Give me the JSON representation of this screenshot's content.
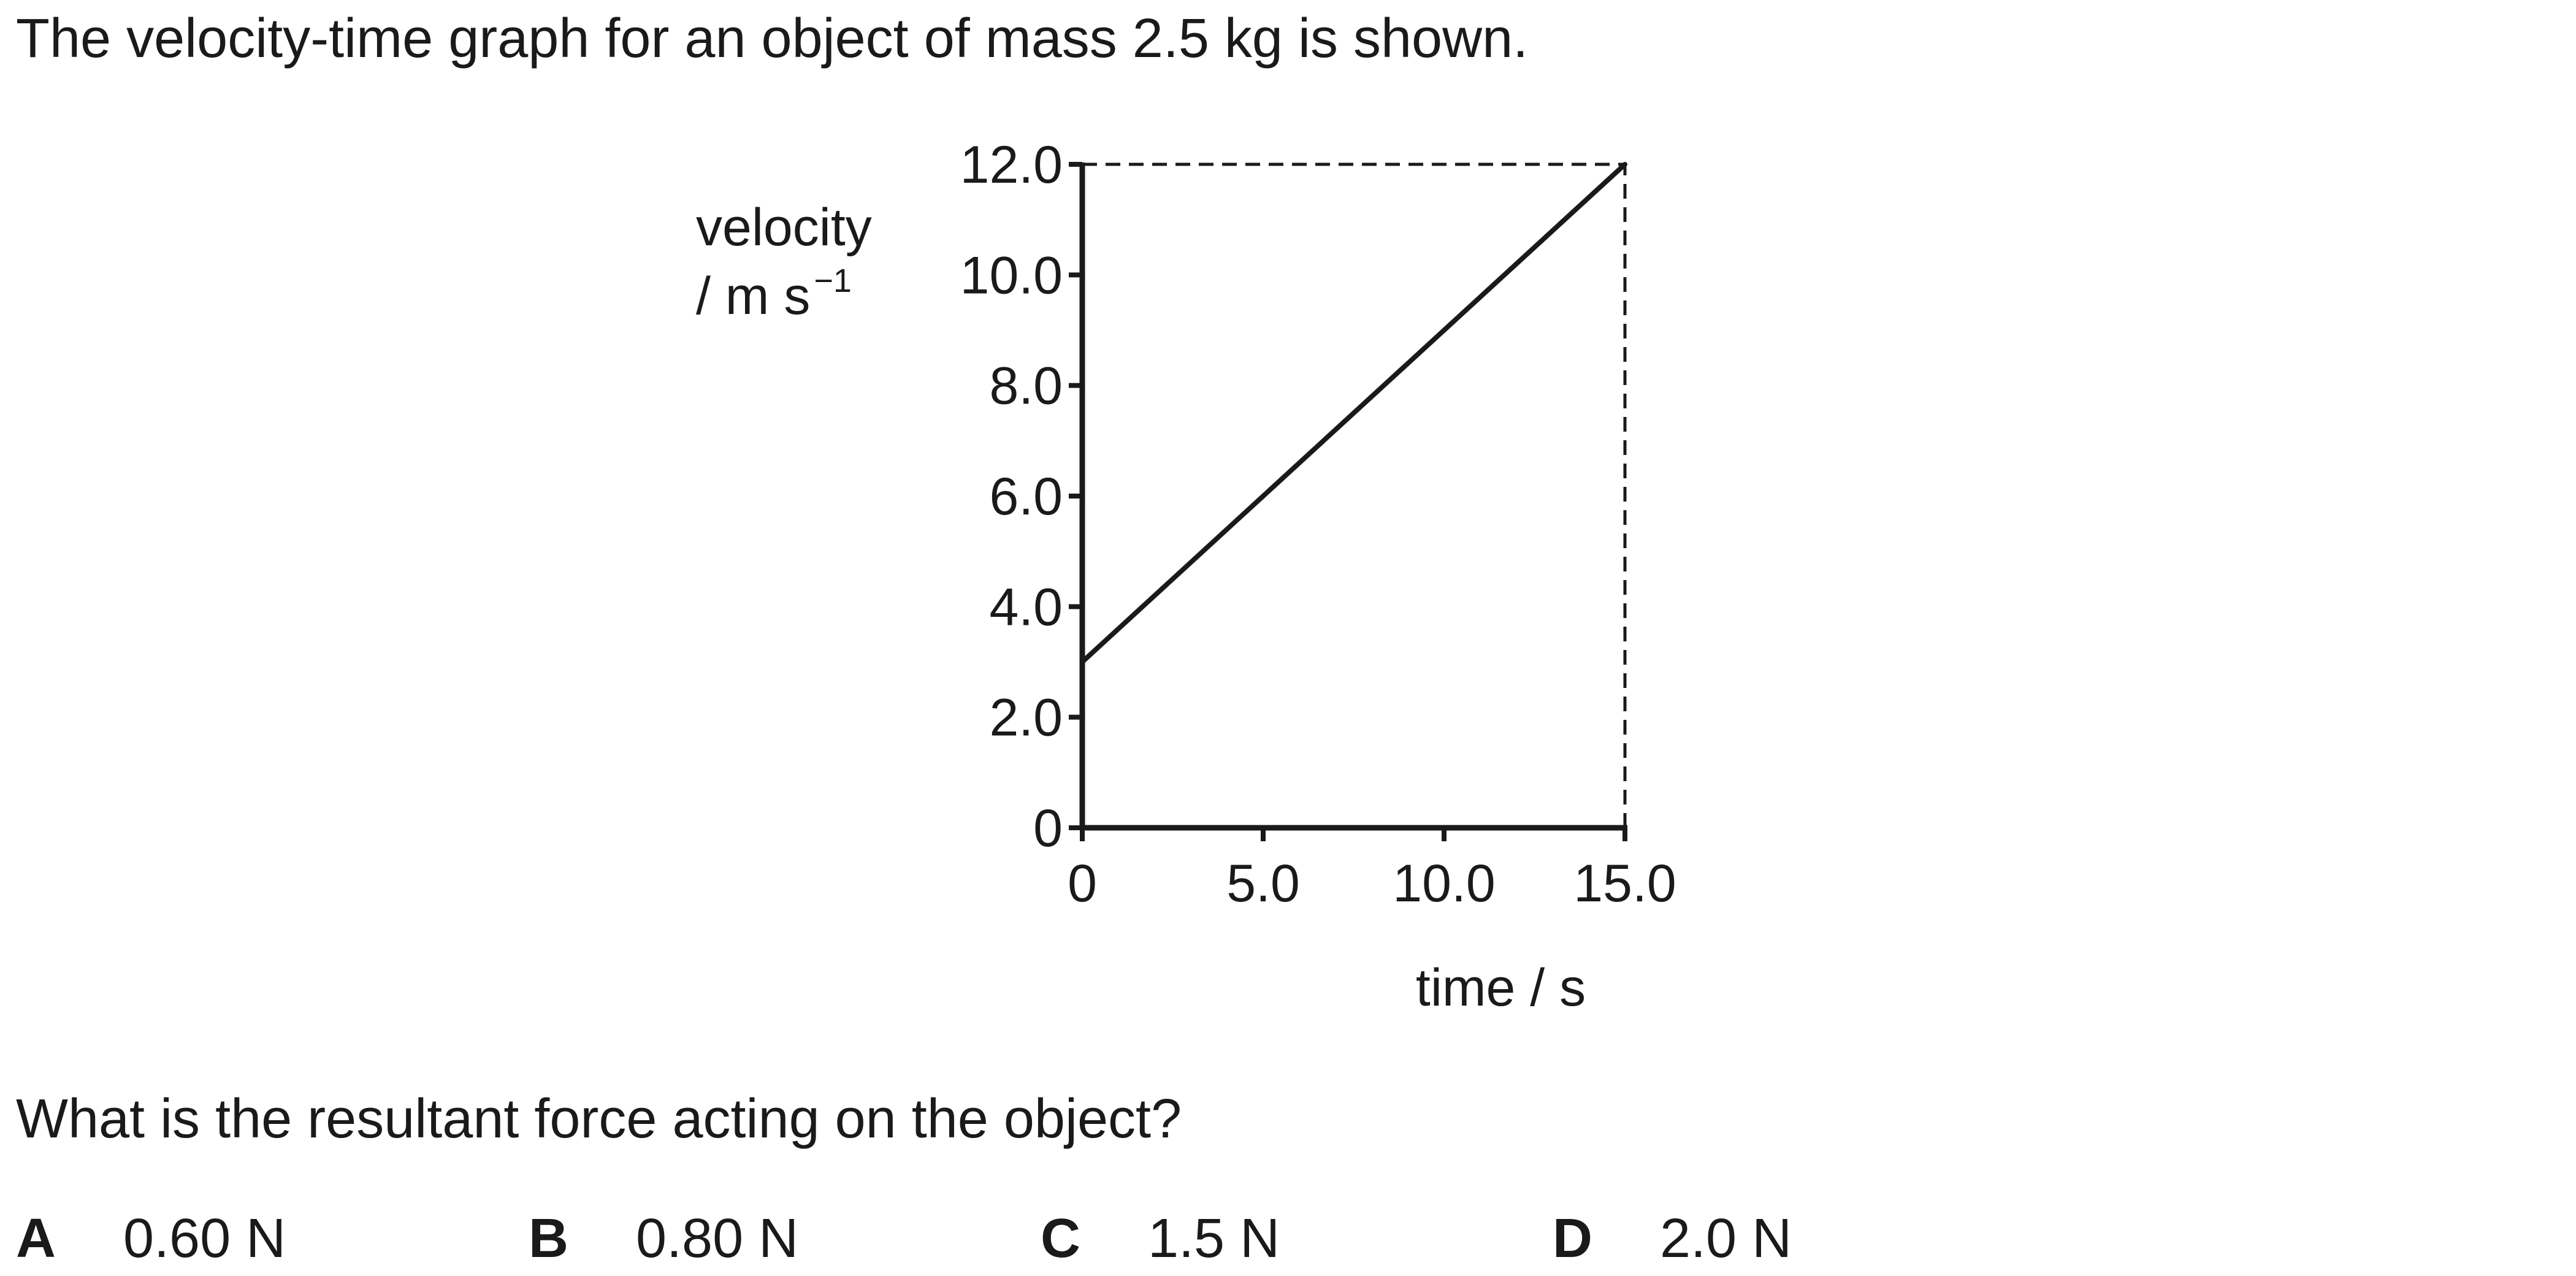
{
  "question": {
    "stem": "The velocity-time graph for an object of mass 2.5 kg is shown.",
    "prompt": "What is the resultant force acting on the object?"
  },
  "options": [
    {
      "letter": "A",
      "value": "0.60 N"
    },
    {
      "letter": "B",
      "value": "0.80 N"
    },
    {
      "letter": "C",
      "value": "1.5 N"
    },
    {
      "letter": "D",
      "value": "2.0 N"
    }
  ],
  "chart_data": {
    "type": "line",
    "title": "",
    "xlabel": "time / s",
    "ylabel_line1": "velocity",
    "ylabel_line2": "/ m s",
    "ylabel_superscript": "−1",
    "xlim": [
      0,
      15
    ],
    "ylim": [
      0,
      12
    ],
    "x_ticks": [
      {
        "value": 0,
        "label": "0"
      },
      {
        "value": 5,
        "label": "5.0"
      },
      {
        "value": 10,
        "label": "10.0"
      },
      {
        "value": 15,
        "label": "15.0"
      }
    ],
    "y_ticks": [
      {
        "value": 0,
        "label": "0"
      },
      {
        "value": 2,
        "label": "2.0"
      },
      {
        "value": 4,
        "label": "4.0"
      },
      {
        "value": 6,
        "label": "6.0"
      },
      {
        "value": 8,
        "label": "8.0"
      },
      {
        "value": 10,
        "label": "10.0"
      },
      {
        "value": 12,
        "label": "12.0"
      }
    ],
    "series": [
      {
        "x": [
          0,
          15
        ],
        "y": [
          3,
          12
        ]
      }
    ],
    "reference_lines": [
      {
        "style": "dashed",
        "x": [
          0,
          15
        ],
        "y": [
          12,
          12
        ]
      },
      {
        "style": "dashed",
        "x": [
          15,
          15
        ],
        "y": [
          0,
          12
        ]
      }
    ],
    "grid": false,
    "legend": "none"
  }
}
